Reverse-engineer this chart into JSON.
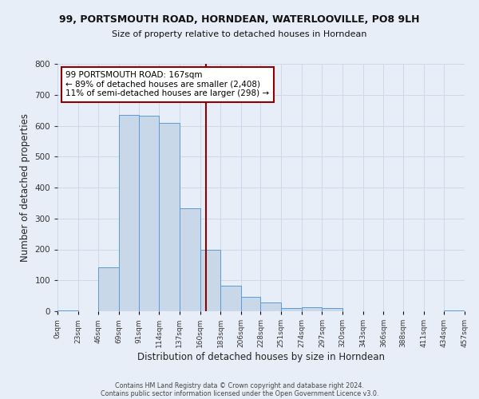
{
  "title": "99, PORTSMOUTH ROAD, HORNDEAN, WATERLOOVILLE, PO8 9LH",
  "subtitle": "Size of property relative to detached houses in Horndean",
  "xlabel": "Distribution of detached houses by size in Horndean",
  "ylabel": "Number of detached properties",
  "bin_edges": [
    0,
    23,
    46,
    69,
    91,
    114,
    137,
    160,
    183,
    206,
    228,
    251,
    274,
    297,
    320,
    343,
    366,
    388,
    411,
    434,
    457
  ],
  "bin_counts": [
    3,
    0,
    143,
    635,
    632,
    610,
    333,
    200,
    83,
    46,
    28,
    10,
    12,
    10,
    0,
    0,
    0,
    0,
    0,
    3
  ],
  "bar_facecolor": "#c8d8e8",
  "bar_edgecolor": "#5b9bd5",
  "vline_x": 167,
  "vline_color": "#8b0000",
  "annotation_title": "99 PORTSMOUTH ROAD: 167sqm",
  "annotation_line1": "← 89% of detached houses are smaller (2,408)",
  "annotation_line2": "11% of semi-detached houses are larger (298) →",
  "annotation_box_facecolor": "#ffffff",
  "annotation_box_edgecolor": "#8b0000",
  "grid_color": "#c8d4e8",
  "background_color": "#e8eef8",
  "ylim": [
    0,
    800
  ],
  "yticks": [
    0,
    100,
    200,
    300,
    400,
    500,
    600,
    700,
    800
  ],
  "footer1": "Contains HM Land Registry data © Crown copyright and database right 2024.",
  "footer2": "Contains public sector information licensed under the Open Government Licence v3.0."
}
